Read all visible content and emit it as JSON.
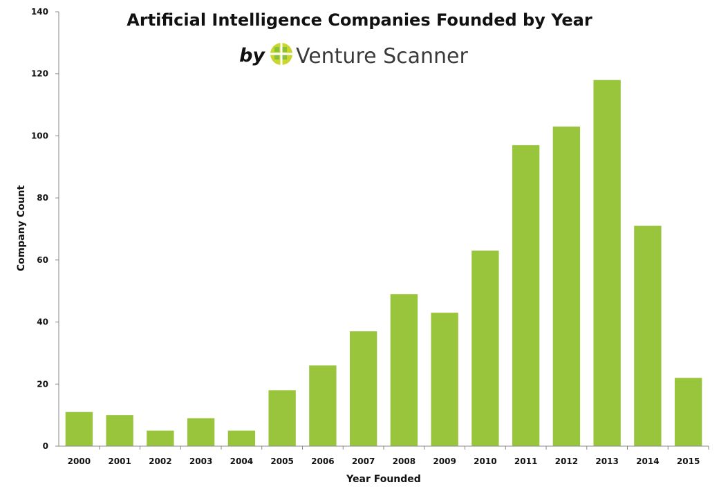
{
  "chart_data": {
    "type": "bar",
    "title": "Artificial Intelligence Companies Founded by Year",
    "subtitle_by": "by",
    "brand": "Venture Scanner",
    "xlabel": "Year Founded",
    "ylabel": "Company Count",
    "ylim": [
      0,
      140
    ],
    "yticks": [
      0,
      20,
      40,
      60,
      80,
      100,
      120,
      140
    ],
    "categories": [
      "2000",
      "2001",
      "2002",
      "2003",
      "2004",
      "2005",
      "2006",
      "2007",
      "2008",
      "2009",
      "2010",
      "2011",
      "2012",
      "2013",
      "2014",
      "2015"
    ],
    "values": [
      11,
      10,
      5,
      9,
      5,
      18,
      26,
      37,
      49,
      43,
      63,
      97,
      103,
      118,
      71,
      22
    ],
    "bar_color": "#99c53d",
    "logo_colors": [
      "#c9d62e",
      "#8bbf3f"
    ],
    "grid": false,
    "legend": "none"
  }
}
